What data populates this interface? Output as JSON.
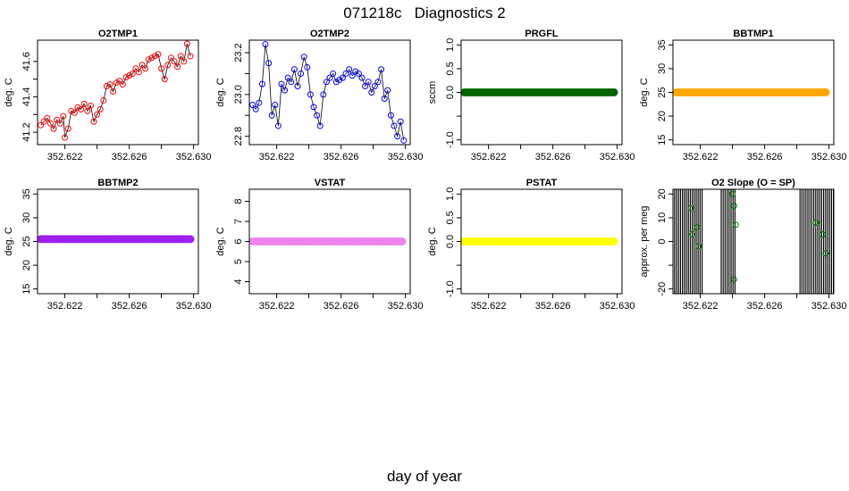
{
  "figure": {
    "title": "071218c   Diagnostics 2",
    "xlabel": "day of year"
  },
  "chart_data": [
    {
      "type": "line",
      "title": "O2TMP1",
      "ylabel": "deg. C",
      "color": "#ff0000",
      "marker": "circle",
      "xlim": [
        352.6203,
        352.6303
      ],
      "ylim": [
        41.13,
        41.72
      ],
      "xticks": [
        352.622,
        352.624,
        352.626,
        352.628,
        352.63
      ],
      "xticklabels": [
        "352.622",
        "",
        "352.626",
        "",
        "352.630"
      ],
      "yticks": [
        41.2,
        41.3,
        41.4,
        41.5,
        41.6
      ],
      "yticklabels": [
        "41.2",
        "",
        "41.4",
        "",
        "41.6"
      ],
      "x": [
        352.6205,
        352.6207,
        352.6209,
        352.6211,
        352.6213,
        352.6215,
        352.6217,
        352.6219,
        352.622,
        352.6222,
        352.6224,
        352.6226,
        352.6228,
        352.623,
        352.6232,
        352.6234,
        352.6236,
        352.6238,
        352.624,
        352.6242,
        352.6244,
        352.6246,
        352.6248,
        352.625,
        352.6252,
        352.6254,
        352.6256,
        352.6258,
        352.626,
        352.6262,
        352.6264,
        352.6266,
        352.6268,
        352.627,
        352.6272,
        352.6274,
        352.6276,
        352.6278,
        352.628,
        352.6282,
        352.6284,
        352.6286,
        352.6288,
        352.629,
        352.6292,
        352.6294,
        352.6296,
        352.6298
      ],
      "y": [
        41.24,
        41.26,
        41.28,
        41.25,
        41.22,
        41.27,
        41.25,
        41.29,
        41.17,
        41.22,
        41.32,
        41.31,
        41.34,
        41.33,
        41.36,
        41.32,
        41.35,
        41.26,
        41.3,
        41.33,
        41.38,
        41.46,
        41.47,
        41.43,
        41.48,
        41.49,
        41.47,
        41.51,
        41.52,
        41.53,
        41.56,
        41.54,
        41.58,
        41.56,
        41.61,
        41.62,
        41.63,
        41.64,
        41.56,
        41.5,
        41.58,
        41.62,
        41.6,
        41.57,
        41.63,
        41.6,
        41.7,
        41.63
      ]
    },
    {
      "type": "line",
      "title": "O2TMP2",
      "ylabel": "deg. C",
      "color": "#0000ff",
      "marker": "circle",
      "xlim": [
        352.6203,
        352.6303
      ],
      "ylim": [
        22.76,
        23.26
      ],
      "xticks": [
        352.622,
        352.624,
        352.626,
        352.628,
        352.63
      ],
      "xticklabels": [
        "352.622",
        "",
        "352.626",
        "",
        "352.630"
      ],
      "yticks": [
        22.8,
        22.9,
        23.0,
        23.1,
        23.2
      ],
      "yticklabels": [
        "22.8",
        "",
        "23.0",
        "",
        "23.2"
      ],
      "x": [
        352.6205,
        352.6207,
        352.6209,
        352.6211,
        352.6213,
        352.6215,
        352.6217,
        352.6219,
        352.6221,
        352.6223,
        352.6225,
        352.6227,
        352.6229,
        352.6231,
        352.6233,
        352.6235,
        352.6237,
        352.6239,
        352.6241,
        352.6243,
        352.6245,
        352.6247,
        352.6249,
        352.6251,
        352.6253,
        352.6255,
        352.6257,
        352.6259,
        352.6261,
        352.6263,
        352.6265,
        352.6267,
        352.6269,
        352.6271,
        352.6273,
        352.6275,
        352.6277,
        352.6279,
        352.6281,
        352.6283,
        352.6285,
        352.6287,
        352.6289,
        352.6291,
        352.6293,
        352.6295,
        352.6297,
        352.6299
      ],
      "y": [
        22.95,
        22.93,
        22.96,
        23.05,
        23.24,
        23.15,
        22.9,
        22.95,
        22.85,
        23.05,
        23.02,
        23.08,
        23.06,
        23.12,
        23.04,
        23.1,
        23.18,
        23.13,
        23.0,
        22.94,
        22.9,
        22.85,
        23.0,
        23.06,
        23.08,
        23.1,
        23.06,
        23.07,
        23.08,
        23.1,
        23.12,
        23.09,
        23.11,
        23.1,
        23.08,
        23.04,
        23.06,
        23.01,
        23.04,
        23.06,
        23.12,
        22.98,
        23.02,
        22.9,
        22.85,
        22.8,
        22.87,
        22.78
      ]
    },
    {
      "type": "scatter",
      "title": "PRGFL",
      "ylabel": "sccm",
      "color": "#006400",
      "marker": "filled-circle",
      "xlim": [
        352.6203,
        352.6303
      ],
      "ylim": [
        -1.1,
        1.1
      ],
      "xticks": [
        352.622,
        352.624,
        352.626,
        352.628,
        352.63
      ],
      "xticklabels": [
        "352.622",
        "",
        "352.626",
        "",
        "352.630"
      ],
      "yticks": [
        -1.0,
        -0.5,
        0.0,
        0.5,
        1.0
      ],
      "yticklabels": [
        "-1.0",
        "",
        "0.0",
        "0.5",
        "1.0"
      ],
      "xrange": [
        352.6205,
        352.6298
      ],
      "constant": 0.0
    },
    {
      "type": "scatter",
      "title": "BBTMP1",
      "ylabel": "deg. C",
      "color": "#ffa500",
      "marker": "filled-circle",
      "xlim": [
        352.6203,
        352.6303
      ],
      "ylim": [
        14,
        36
      ],
      "xticks": [
        352.622,
        352.624,
        352.626,
        352.628,
        352.63
      ],
      "xticklabels": [
        "352.622",
        "",
        "352.626",
        "",
        "352.630"
      ],
      "yticks": [
        15,
        20,
        25,
        30,
        35
      ],
      "yticklabels": [
        "15",
        "20",
        "25",
        "30",
        "35"
      ],
      "xrange": [
        352.6205,
        352.6298
      ],
      "constant": 25.0
    },
    {
      "type": "scatter",
      "title": "BBTMP2",
      "ylabel": "deg. C",
      "color": "#a020f0",
      "marker": "filled-circle",
      "xlim": [
        352.6203,
        352.6303
      ],
      "ylim": [
        14,
        36
      ],
      "xticks": [
        352.622,
        352.624,
        352.626,
        352.628,
        352.63
      ],
      "xticklabels": [
        "352.622",
        "",
        "352.626",
        "",
        "352.630"
      ],
      "yticks": [
        15,
        20,
        25,
        30,
        35
      ],
      "yticklabels": [
        "15",
        "20",
        "25",
        "30",
        "35"
      ],
      "xrange": [
        352.6205,
        352.6298
      ],
      "constant": 25.5
    },
    {
      "type": "scatter",
      "title": "VSTAT",
      "ylabel": "deg. C",
      "color": "#ee82ee",
      "marker": "filled-circle",
      "xlim": [
        352.6203,
        352.6303
      ],
      "ylim": [
        3.4,
        8.6
      ],
      "xticks": [
        352.622,
        352.624,
        352.626,
        352.628,
        352.63
      ],
      "xticklabels": [
        "352.622",
        "",
        "352.626",
        "",
        "352.630"
      ],
      "yticks": [
        4,
        5,
        6,
        7,
        8
      ],
      "yticklabels": [
        "4",
        "5",
        "6",
        "7",
        "8"
      ],
      "xrange": [
        352.6205,
        352.6298
      ],
      "constant": 6.0
    },
    {
      "type": "scatter",
      "title": "PSTAT",
      "ylabel": "deg. C",
      "color": "#ffff00",
      "marker": "filled-circle",
      "xlim": [
        352.6203,
        352.6303
      ],
      "ylim": [
        -1.1,
        1.1
      ],
      "xticks": [
        352.622,
        352.624,
        352.626,
        352.628,
        352.63
      ],
      "xticklabels": [
        "352.622",
        "",
        "352.626",
        "",
        "352.630"
      ],
      "yticks": [
        -1.0,
        -0.5,
        0.0,
        0.5,
        1.0
      ],
      "yticklabels": [
        "-1.0",
        "",
        "0.0",
        "0.5",
        "1.0"
      ],
      "xrange": [
        352.6205,
        352.6298
      ],
      "constant": 0.0
    },
    {
      "type": "line",
      "title": "O2 Slope (O = SP)",
      "ylabel": "approx. per meg",
      "color": "#000000",
      "point_color": "#008000",
      "marker": "circle",
      "xlim": [
        352.6203,
        352.6303
      ],
      "ylim": [
        -22,
        22
      ],
      "xticks": [
        352.622,
        352.624,
        352.626,
        352.628,
        352.63
      ],
      "xticklabels": [
        "352.622",
        "",
        "352.626",
        "",
        "352.630"
      ],
      "yticks": [
        -20,
        -10,
        0,
        10,
        20
      ],
      "yticklabels": [
        "-20",
        "",
        "0",
        "10",
        "20"
      ],
      "activity_ranges": [
        [
          352.6204,
          352.6222
        ],
        [
          352.6233,
          352.6242
        ],
        [
          352.6282,
          352.6303
        ]
      ],
      "points_x": [
        352.6214,
        352.6215,
        352.6218,
        352.6219,
        352.624,
        352.6241,
        352.6242,
        352.6241,
        352.6292,
        352.6296,
        352.6298
      ],
      "points_y": [
        14,
        3,
        6,
        -2,
        20,
        15,
        7,
        -16,
        8,
        3,
        -5
      ]
    }
  ]
}
